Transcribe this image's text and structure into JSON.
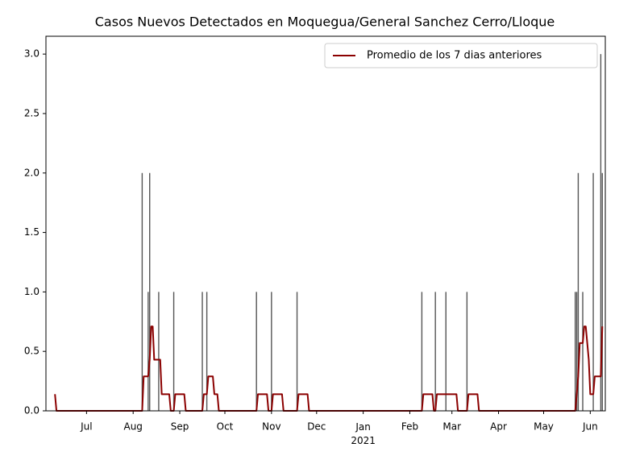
{
  "chart_data": {
    "type": "bar_line",
    "title": "Casos Nuevos Detectados en Moquegua/General Sanchez Cerro/Lloque",
    "bars": {
      "color": "#555555",
      "x": [
        "2020-08-07",
        "2020-08-11",
        "2020-08-12",
        "2020-08-18",
        "2020-08-28",
        "2020-09-16",
        "2020-09-19",
        "2020-10-22",
        "2020-11-01",
        "2020-11-18",
        "2021-02-09",
        "2021-02-18",
        "2021-02-25",
        "2021-03-11",
        "2021-05-22",
        "2021-05-23",
        "2021-05-24",
        "2021-05-27",
        "2021-06-03",
        "2021-06-08",
        "2021-06-09"
      ],
      "values": [
        2,
        1,
        2,
        1,
        1,
        1,
        1,
        1,
        1,
        1,
        1,
        1,
        1,
        1,
        1,
        1,
        2,
        1,
        2,
        3,
        2
      ]
    },
    "series": [
      {
        "name": "Promedio de los 7 dias anteriores",
        "color": "#8b0000",
        "x": [
          "2020-06-10",
          "2020-06-11",
          "2020-08-07",
          "2020-08-08",
          "2020-08-11",
          "2020-08-12",
          "2020-08-13",
          "2020-08-14",
          "2020-08-15",
          "2020-08-19",
          "2020-08-20",
          "2020-08-25",
          "2020-08-26",
          "2020-08-28",
          "2020-08-29",
          "2020-09-04",
          "2020-09-05",
          "2020-09-16",
          "2020-09-17",
          "2020-09-19",
          "2020-09-20",
          "2020-09-23",
          "2020-09-24",
          "2020-09-26",
          "2020-09-27",
          "2020-10-22",
          "2020-10-23",
          "2020-10-29",
          "2020-10-30",
          "2020-11-01",
          "2020-11-02",
          "2020-11-08",
          "2020-11-09",
          "2020-11-18",
          "2020-11-19",
          "2020-11-25",
          "2020-11-26",
          "2021-02-09",
          "2021-02-10",
          "2021-02-16",
          "2021-02-17",
          "2021-02-18",
          "2021-02-19",
          "2021-03-04",
          "2021-03-05",
          "2021-03-11",
          "2021-03-12",
          "2021-03-18",
          "2021-03-19",
          "2021-05-22",
          "2021-05-23",
          "2021-05-24",
          "2021-05-25",
          "2021-05-27",
          "2021-05-28",
          "2021-05-29",
          "2021-05-30",
          "2021-05-31",
          "2021-06-01",
          "2021-06-03",
          "2021-06-04",
          "2021-06-08",
          "2021-06-09"
        ],
        "values": [
          0.14,
          0,
          0,
          0.29,
          0.29,
          0.43,
          0.71,
          0.71,
          0.43,
          0.43,
          0.14,
          0.14,
          0,
          0,
          0.14,
          0.14,
          0,
          0,
          0.14,
          0.14,
          0.29,
          0.29,
          0.14,
          0.14,
          0,
          0,
          0.14,
          0.14,
          0,
          0,
          0.14,
          0.14,
          0,
          0,
          0.14,
          0.14,
          0,
          0,
          0.14,
          0.14,
          0,
          0,
          0.14,
          0.14,
          0,
          0,
          0.14,
          0.14,
          0,
          0,
          0.14,
          0.29,
          0.57,
          0.57,
          0.71,
          0.71,
          0.57,
          0.43,
          0.14,
          0.14,
          0.29,
          0.29,
          0.71
        ]
      }
    ],
    "xlim": [
      "2020-06-04",
      "2021-06-11"
    ],
    "xticks": [
      {
        "value": "2020-07-01",
        "label": "Jul"
      },
      {
        "value": "2020-08-01",
        "label": "Aug"
      },
      {
        "value": "2020-09-01",
        "label": "Sep"
      },
      {
        "value": "2020-10-01",
        "label": "Oct"
      },
      {
        "value": "2020-11-01",
        "label": "Nov"
      },
      {
        "value": "2020-12-01",
        "label": "Dec"
      },
      {
        "value": "2021-01-01",
        "label": "Jan\n2021"
      },
      {
        "value": "2021-02-01",
        "label": "Feb"
      },
      {
        "value": "2021-03-01",
        "label": "Mar"
      },
      {
        "value": "2021-04-01",
        "label": "Apr"
      },
      {
        "value": "2021-05-01",
        "label": "May"
      },
      {
        "value": "2021-06-01",
        "label": "Jun"
      }
    ],
    "ylim": [
      0,
      3.15
    ],
    "yticks": [
      {
        "value": 0,
        "label": "0.0"
      },
      {
        "value": 0.5,
        "label": "0.5"
      },
      {
        "value": 1,
        "label": "1.0"
      },
      {
        "value": 1.5,
        "label": "1.5"
      },
      {
        "value": 2,
        "label": "2.0"
      },
      {
        "value": 2.5,
        "label": "2.5"
      },
      {
        "value": 3,
        "label": "3.0"
      }
    ],
    "legend": "upper right"
  }
}
